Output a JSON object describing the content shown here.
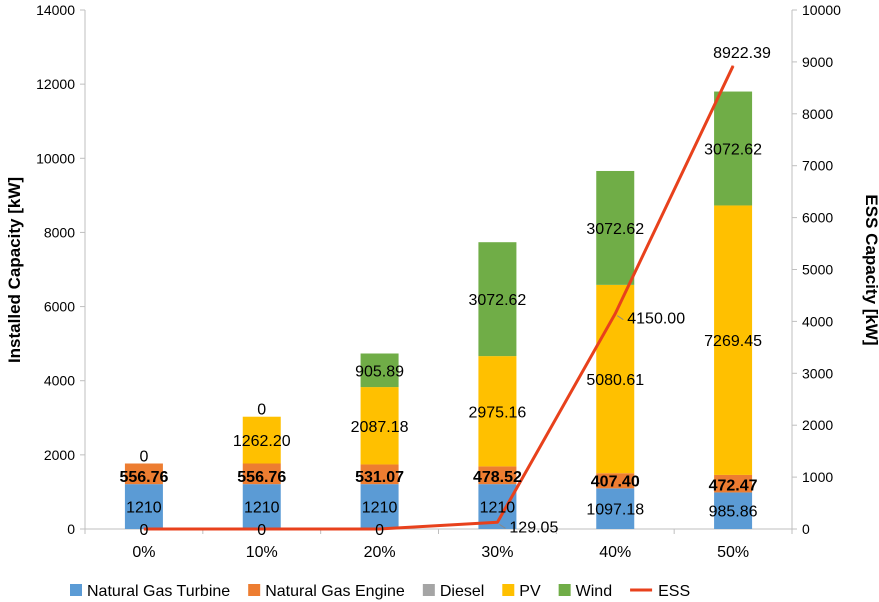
{
  "chart_data": {
    "type": "bar",
    "stacked": true,
    "categories": [
      "0%",
      "10%",
      "20%",
      "30%",
      "40%",
      "50%"
    ],
    "ylabel": "Installed Capacity [kW]",
    "y2label": "ESS Capacity [kW]",
    "ylim": [
      0,
      14000
    ],
    "y2lim": [
      0,
      10000
    ],
    "yticks": [
      "0",
      "2000",
      "4000",
      "6000",
      "8000",
      "10000",
      "12000",
      "14000"
    ],
    "y2ticks": [
      "0",
      "1000",
      "2000",
      "3000",
      "4000",
      "5000",
      "6000",
      "7000",
      "8000",
      "9000",
      "10000"
    ],
    "legend_position": "bottom",
    "grid": false,
    "series": [
      {
        "name": "Natural Gas Turbine",
        "color": "#5B9BD5",
        "values": [
          1210,
          1210,
          1210,
          1210,
          1097.18,
          985.86
        ],
        "labels": [
          "1210",
          "1210",
          "1210",
          "1210",
          "1097.18",
          "985.86"
        ]
      },
      {
        "name": "Natural Gas Engine",
        "color": "#ED7D31",
        "values": [
          556.76,
          556.76,
          531.07,
          478.52,
          407.4,
          472.47
        ],
        "labels": [
          "556.76",
          "556.76",
          "531.07",
          "478.52",
          "407.40",
          "472.47"
        ]
      },
      {
        "name": "Diesel",
        "color": "#A5A5A5",
        "values": [
          0,
          0,
          0,
          0,
          0,
          0
        ],
        "labels": [
          "0",
          "0",
          "0",
          "",
          "",
          ""
        ]
      },
      {
        "name": "PV",
        "color": "#FFC000",
        "values": [
          0,
          1262.2,
          2087.18,
          2975.16,
          5080.61,
          7269.45
        ],
        "labels": [
          "",
          "1262.20",
          "2087.18",
          "2975.16",
          "5080.61",
          "7269.45"
        ]
      },
      {
        "name": "Wind",
        "color": "#70AD47",
        "values": [
          0,
          0,
          905.89,
          3072.62,
          3072.62,
          3072.62
        ],
        "labels": [
          "0",
          "0",
          "905.89",
          "3072.62",
          "3072.62",
          "3072.62"
        ]
      },
      {
        "name": "ESS",
        "color": "#E8411C",
        "type": "line",
        "axis": "secondary",
        "values": [
          0,
          0,
          0,
          129.05,
          4150.0,
          8922.39
        ],
        "labels": [
          "0",
          "0",
          "0",
          "129.05",
          "4150.00",
          "8922.39"
        ]
      }
    ]
  }
}
